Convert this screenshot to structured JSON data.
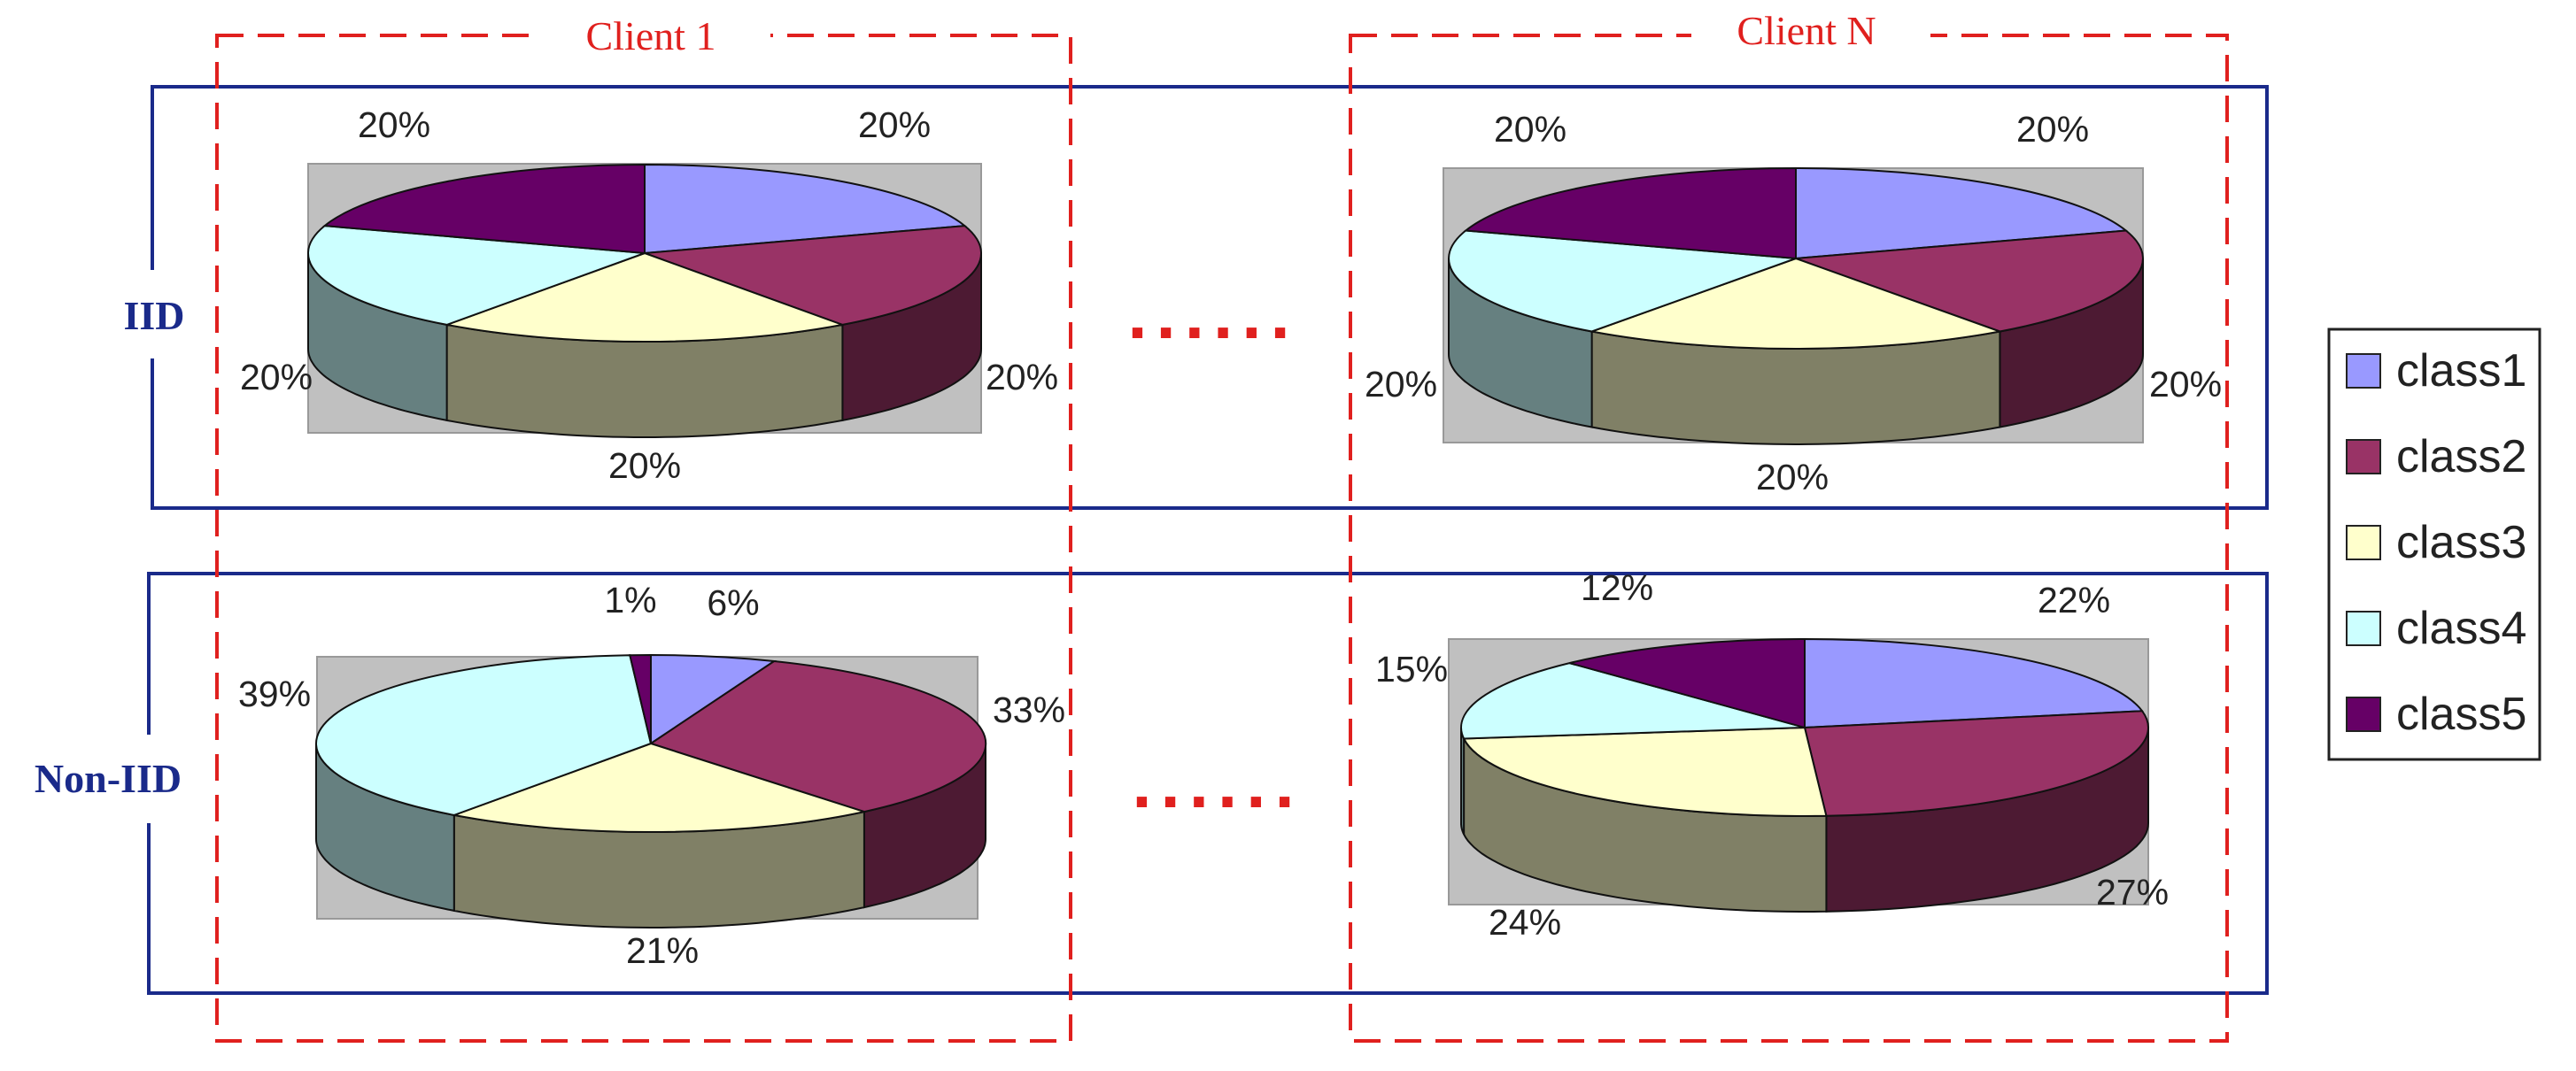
{
  "clients": {
    "first_label": "Client 1",
    "last_label": "Client N",
    "ellipsis": "......"
  },
  "rows": [
    {
      "label": "IID"
    },
    {
      "label": "Non-IID"
    }
  ],
  "legend": [
    {
      "label": "class1",
      "color": "#9999ff"
    },
    {
      "label": "class2",
      "color": "#993366"
    },
    {
      "label": "class3",
      "color": "#ffffcc"
    },
    {
      "label": "class4",
      "color": "#ccffff"
    },
    {
      "label": "class5",
      "color": "#660066"
    }
  ],
  "chart_data": [
    {
      "type": "pie",
      "row": "IID",
      "client": "Client 1",
      "categories": [
        "class1",
        "class2",
        "class3",
        "class4",
        "class5"
      ],
      "values": [
        20,
        20,
        20,
        20,
        20
      ],
      "labels": [
        "20%",
        "20%",
        "20%",
        "20%",
        "20%"
      ]
    },
    {
      "type": "pie",
      "row": "IID",
      "client": "Client N",
      "categories": [
        "class1",
        "class2",
        "class3",
        "class4",
        "class5"
      ],
      "values": [
        20,
        20,
        20,
        20,
        20
      ],
      "labels": [
        "20%",
        "20%",
        "20%",
        "20%",
        "20%"
      ]
    },
    {
      "type": "pie",
      "row": "Non-IID",
      "client": "Client 1",
      "categories": [
        "class1",
        "class2",
        "class3",
        "class4",
        "class5"
      ],
      "values": [
        6,
        33,
        21,
        39,
        1
      ],
      "labels": [
        "6%",
        "33%",
        "21%",
        "39%",
        "1%"
      ]
    },
    {
      "type": "pie",
      "row": "Non-IID",
      "client": "Client N",
      "categories": [
        "class1",
        "class2",
        "class3",
        "class4",
        "class5"
      ],
      "values": [
        22,
        27,
        24,
        15,
        12
      ],
      "labels": [
        "22%",
        "27%",
        "24%",
        "15%",
        "12%"
      ]
    }
  ]
}
